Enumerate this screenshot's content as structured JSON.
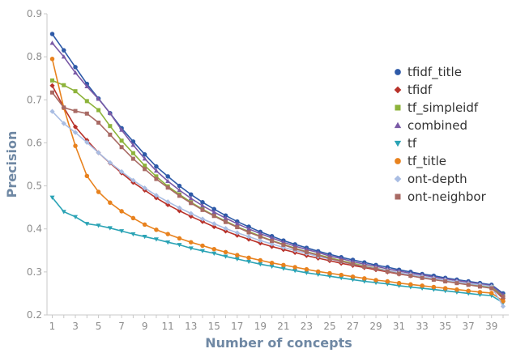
{
  "chart_data": {
    "type": "line",
    "title": "",
    "xlabel": "Number of concepts",
    "ylabel": "Precision",
    "x": [
      1,
      2,
      3,
      4,
      5,
      6,
      7,
      8,
      9,
      10,
      11,
      12,
      13,
      14,
      15,
      16,
      17,
      18,
      19,
      20,
      21,
      22,
      23,
      24,
      25,
      26,
      27,
      28,
      29,
      30,
      31,
      32,
      33,
      34,
      35,
      36,
      37,
      38,
      39,
      40
    ],
    "x_tick_labels": [
      "1",
      "3",
      "5",
      "7",
      "9",
      "11",
      "13",
      "15",
      "17",
      "19",
      "21",
      "23",
      "25",
      "27",
      "29",
      "31",
      "33",
      "35",
      "37",
      "39"
    ],
    "y_tick_labels": [
      "0.2",
      "0.3",
      "0.4",
      "0.5",
      "0.6",
      "0.7",
      "0.8",
      "0.9"
    ],
    "xlim": [
      1,
      40
    ],
    "ylim": [
      0.2,
      0.9
    ],
    "grid": false,
    "legend_position": "right",
    "series": [
      {
        "name": "tfidf_title",
        "color": "#2e5aa8",
        "marker": "circle",
        "values": [
          0.853,
          0.815,
          0.776,
          0.737,
          0.703,
          0.669,
          0.634,
          0.603,
          0.573,
          0.545,
          0.522,
          0.5,
          0.48,
          0.462,
          0.446,
          0.431,
          0.417,
          0.405,
          0.393,
          0.383,
          0.373,
          0.364,
          0.356,
          0.348,
          0.341,
          0.334,
          0.328,
          0.322,
          0.316,
          0.311,
          0.305,
          0.3,
          0.295,
          0.291,
          0.286,
          0.282,
          0.278,
          0.274,
          0.27,
          0.25
        ]
      },
      {
        "name": "tfidf",
        "color": "#b8322a",
        "marker": "diamond",
        "values": [
          0.733,
          0.682,
          0.637,
          0.606,
          0.577,
          0.553,
          0.53,
          0.508,
          0.49,
          0.472,
          0.456,
          0.442,
          0.429,
          0.417,
          0.405,
          0.395,
          0.385,
          0.376,
          0.367,
          0.359,
          0.352,
          0.345,
          0.338,
          0.332,
          0.326,
          0.32,
          0.315,
          0.31,
          0.305,
          0.3,
          0.295,
          0.291,
          0.287,
          0.283,
          0.279,
          0.275,
          0.272,
          0.268,
          0.265,
          0.238
        ]
      },
      {
        "name": "tf_simpleidf",
        "color": "#8db33a",
        "marker": "square",
        "values": [
          0.745,
          0.734,
          0.72,
          0.697,
          0.676,
          0.639,
          0.605,
          0.576,
          0.547,
          0.522,
          0.499,
          0.48,
          0.462,
          0.446,
          0.431,
          0.418,
          0.405,
          0.394,
          0.383,
          0.373,
          0.364,
          0.355,
          0.347,
          0.34,
          0.333,
          0.326,
          0.32,
          0.314,
          0.309,
          0.303,
          0.298,
          0.293,
          0.289,
          0.284,
          0.28,
          0.276,
          0.272,
          0.268,
          0.265,
          0.244
        ]
      },
      {
        "name": "combined",
        "color": "#7a5aa6",
        "marker": "triangle",
        "values": [
          0.832,
          0.8,
          0.763,
          0.731,
          0.702,
          0.669,
          0.63,
          0.595,
          0.563,
          0.535,
          0.511,
          0.49,
          0.471,
          0.454,
          0.439,
          0.425,
          0.412,
          0.4,
          0.389,
          0.379,
          0.369,
          0.36,
          0.352,
          0.345,
          0.337,
          0.331,
          0.324,
          0.318,
          0.313,
          0.307,
          0.302,
          0.297,
          0.293,
          0.288,
          0.284,
          0.28,
          0.276,
          0.272,
          0.268,
          0.247
        ]
      },
      {
        "name": "tf",
        "color": "#2aa3b5",
        "marker": "triangle-down",
        "values": [
          0.473,
          0.44,
          0.428,
          0.412,
          0.408,
          0.402,
          0.395,
          0.388,
          0.382,
          0.376,
          0.369,
          0.363,
          0.355,
          0.349,
          0.343,
          0.336,
          0.33,
          0.324,
          0.318,
          0.313,
          0.308,
          0.303,
          0.298,
          0.294,
          0.29,
          0.286,
          0.282,
          0.278,
          0.275,
          0.272,
          0.268,
          0.265,
          0.262,
          0.259,
          0.256,
          0.253,
          0.25,
          0.247,
          0.245,
          0.228
        ]
      },
      {
        "name": "tf_title",
        "color": "#e8821e",
        "marker": "circle",
        "values": [
          0.795,
          0.681,
          0.593,
          0.523,
          0.486,
          0.461,
          0.441,
          0.425,
          0.41,
          0.398,
          0.388,
          0.378,
          0.369,
          0.361,
          0.353,
          0.346,
          0.339,
          0.333,
          0.327,
          0.321,
          0.316,
          0.311,
          0.306,
          0.301,
          0.297,
          0.293,
          0.289,
          0.285,
          0.281,
          0.278,
          0.274,
          0.271,
          0.268,
          0.265,
          0.262,
          0.259,
          0.256,
          0.253,
          0.251,
          0.232
        ]
      },
      {
        "name": "ont-depth",
        "color": "#a9bde3",
        "marker": "diamond",
        "values": [
          0.673,
          0.645,
          0.624,
          0.601,
          0.577,
          0.554,
          0.533,
          0.513,
          0.495,
          0.478,
          0.463,
          0.449,
          0.436,
          0.423,
          0.412,
          0.401,
          0.391,
          0.382,
          0.373,
          0.365,
          0.357,
          0.35,
          0.343,
          0.336,
          0.33,
          0.324,
          0.318,
          0.313,
          0.308,
          0.303,
          0.298,
          0.294,
          0.289,
          0.285,
          0.281,
          0.277,
          0.273,
          0.27,
          0.266,
          0.22
        ]
      },
      {
        "name": "ont-neighbor",
        "color": "#a86a64",
        "marker": "square",
        "values": [
          0.717,
          0.682,
          0.674,
          0.668,
          0.647,
          0.619,
          0.59,
          0.563,
          0.539,
          0.516,
          0.496,
          0.477,
          0.46,
          0.444,
          0.43,
          0.416,
          0.404,
          0.392,
          0.382,
          0.372,
          0.363,
          0.354,
          0.346,
          0.339,
          0.331,
          0.325,
          0.318,
          0.312,
          0.307,
          0.301,
          0.296,
          0.291,
          0.286,
          0.282,
          0.278,
          0.274,
          0.27,
          0.266,
          0.262,
          0.242
        ]
      }
    ]
  }
}
